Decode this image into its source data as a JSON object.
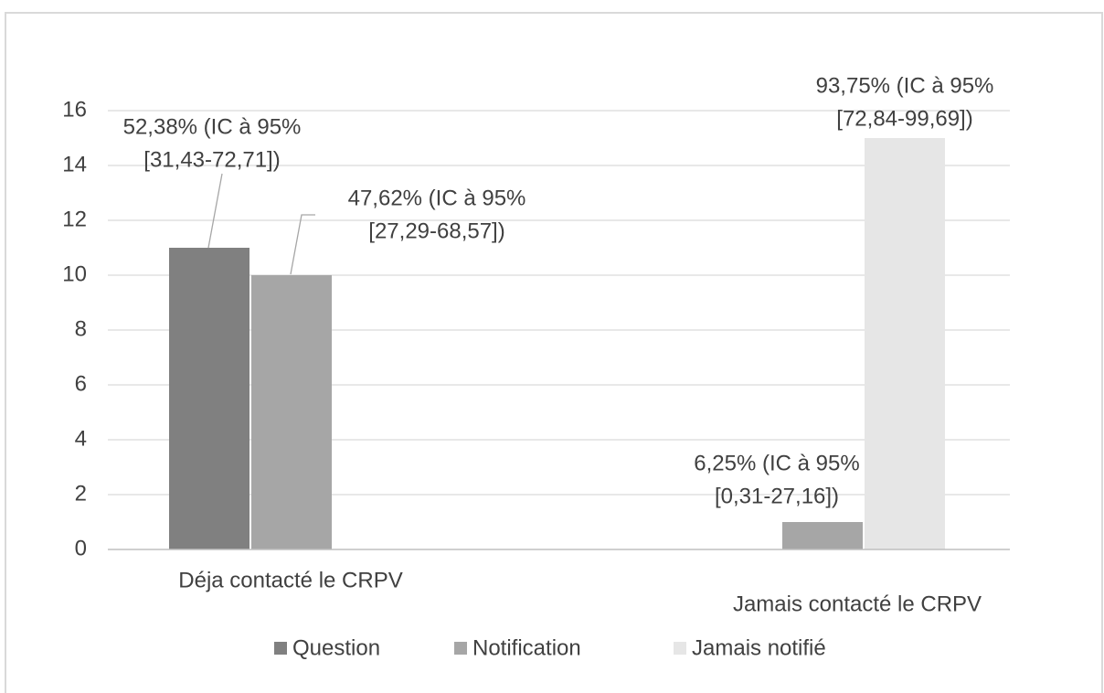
{
  "chart_data": {
    "type": "bar",
    "categories": [
      "Déja contacté le CRPV",
      "Jamais contacté le CRPV"
    ],
    "series": [
      {
        "name": "Question",
        "color": "#808080",
        "values": [
          11,
          0
        ],
        "labels": [
          [
            "52,38% (IC à 95%",
            "[31,43-72,71])"
          ],
          null
        ]
      },
      {
        "name": "Notification",
        "color": "#a6a6a6",
        "values": [
          10,
          1
        ],
        "labels": [
          [
            "47,62% (IC à 95%",
            "[27,29-68,57])"
          ],
          [
            "6,25% (IC à 95%",
            "[0,31-27,16])"
          ]
        ]
      },
      {
        "name": "Jamais notifié",
        "color": "#e6e6e6",
        "values": [
          0,
          15
        ],
        "labels": [
          null,
          [
            "93,75% (IC à 95%",
            "[72,84-99,69])"
          ]
        ]
      }
    ],
    "ylim": [
      0,
      16
    ],
    "yticks": [
      0,
      2,
      4,
      6,
      8,
      10,
      12,
      14,
      16
    ],
    "grid": true,
    "legend": "bottom"
  }
}
